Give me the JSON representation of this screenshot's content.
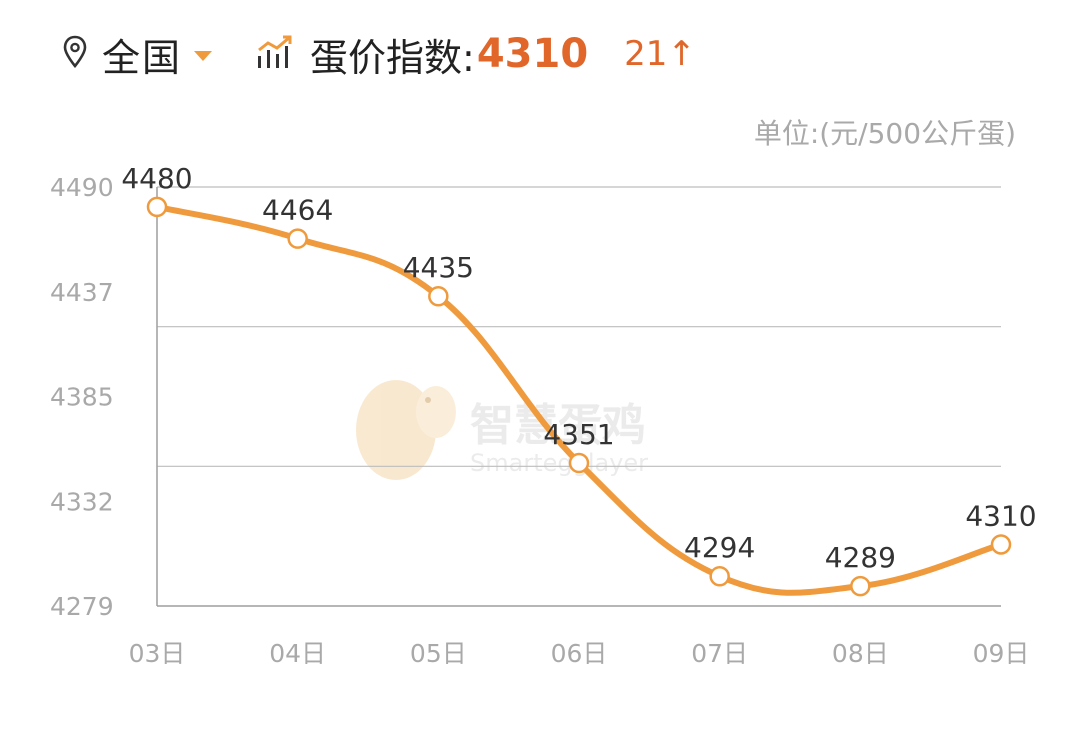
{
  "header": {
    "region_label": "全国",
    "index_label": "蛋价指数:",
    "index_value": "4310",
    "index_change": "21↑"
  },
  "unit_label": "单位:(元/500公斤蛋)",
  "watermark": {
    "cn": "智慧蛋鸡",
    "en": "Smartegglayer"
  },
  "colors": {
    "accent": "#ef9a3c",
    "value": "#e0662a",
    "axis_text": "#a9a9a9",
    "grid": "#bdbdbd"
  },
  "chart_data": {
    "type": "line",
    "categories": [
      "03日",
      "04日",
      "05日",
      "06日",
      "07日",
      "08日",
      "09日"
    ],
    "values": [
      4480,
      4464,
      4435,
      4351,
      4294,
      4289,
      4310
    ],
    "data_labels": [
      "4480",
      "4464",
      "4435",
      "4351",
      "4294",
      "4289",
      "4310"
    ],
    "y_ticks": [
      "4490",
      "4437",
      "4385",
      "4332",
      "4279"
    ],
    "ylim": [
      4279,
      4490
    ],
    "title": "",
    "xlabel": "",
    "ylabel": "",
    "smooth": true,
    "grid": true
  }
}
